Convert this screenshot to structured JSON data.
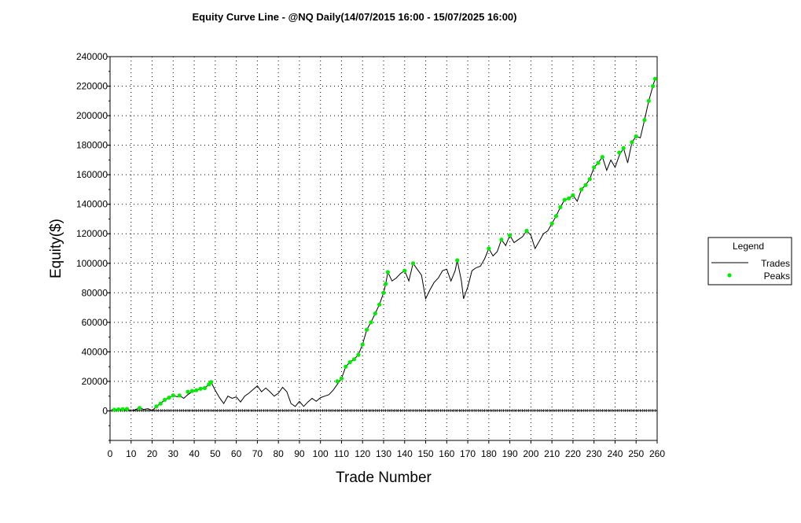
{
  "chart_data": {
    "type": "line",
    "title": "Equity Curve Line - @NQ Daily(14/07/2015 16:00 - 15/07/2025 16:00)",
    "xlabel": "Trade Number",
    "ylabel": "Equity($)",
    "xlim": [
      0,
      260
    ],
    "ylim": [
      -20000,
      240000
    ],
    "x_ticks": [
      "0",
      "10",
      "20",
      "30",
      "40",
      "50",
      "60",
      "70",
      "80",
      "90",
      "100",
      "110",
      "120",
      "130",
      "140",
      "150",
      "160",
      "170",
      "180",
      "190",
      "200",
      "210",
      "220",
      "230",
      "240",
      "250",
      "260"
    ],
    "y_ticks": [
      "0",
      "20000",
      "40000",
      "60000",
      "80000",
      "100000",
      "120000",
      "140000",
      "160000",
      "180000",
      "200000",
      "220000",
      "240000"
    ],
    "grid": true,
    "legend": {
      "title": "Legend",
      "position": "right",
      "entries": [
        "Trades",
        "Peaks"
      ]
    },
    "colors": {
      "trades": "#000000",
      "peaks": "#00ee00"
    },
    "series": [
      {
        "name": "Trades",
        "points": [
          [
            0,
            0
          ],
          [
            2,
            800
          ],
          [
            4,
            1000
          ],
          [
            6,
            1200
          ],
          [
            8,
            600
          ],
          [
            10,
            200
          ],
          [
            12,
            800
          ],
          [
            14,
            2000
          ],
          [
            16,
            1000
          ],
          [
            18,
            1500
          ],
          [
            20,
            300
          ],
          [
            21,
            1500
          ],
          [
            22,
            3000
          ],
          [
            24,
            5000
          ],
          [
            26,
            7500
          ],
          [
            28,
            9000
          ],
          [
            30,
            10500
          ],
          [
            32,
            9500
          ],
          [
            33,
            10500
          ],
          [
            35,
            8500
          ],
          [
            37,
            11000
          ],
          [
            39,
            13000
          ],
          [
            41,
            14000
          ],
          [
            43,
            15000
          ],
          [
            45,
            15500
          ],
          [
            47,
            18000
          ],
          [
            48,
            19500
          ],
          [
            50,
            14000
          ],
          [
            52,
            9000
          ],
          [
            54,
            5000
          ],
          [
            56,
            10000
          ],
          [
            58,
            8500
          ],
          [
            60,
            9500
          ],
          [
            62,
            6000
          ],
          [
            64,
            10000
          ],
          [
            66,
            12000
          ],
          [
            68,
            14500
          ],
          [
            70,
            17000
          ],
          [
            72,
            13000
          ],
          [
            74,
            15500
          ],
          [
            76,
            13000
          ],
          [
            78,
            10000
          ],
          [
            80,
            12000
          ],
          [
            82,
            16000
          ],
          [
            84,
            13000
          ],
          [
            86,
            5000
          ],
          [
            88,
            3000
          ],
          [
            90,
            6500
          ],
          [
            92,
            3000
          ],
          [
            94,
            6000
          ],
          [
            96,
            8500
          ],
          [
            98,
            6500
          ],
          [
            100,
            9000
          ],
          [
            102,
            10000
          ],
          [
            104,
            11000
          ],
          [
            106,
            14000
          ],
          [
            108,
            18000
          ],
          [
            110,
            22000
          ],
          [
            112,
            30000
          ],
          [
            114,
            33000
          ],
          [
            116,
            35000
          ],
          [
            118,
            38000
          ],
          [
            120,
            45000
          ],
          [
            122,
            55000
          ],
          [
            124,
            60000
          ],
          [
            126,
            66000
          ],
          [
            128,
            72000
          ],
          [
            130,
            80000
          ],
          [
            131,
            86000
          ],
          [
            132,
            94000
          ],
          [
            134,
            88000
          ],
          [
            136,
            90000
          ],
          [
            138,
            93000
          ],
          [
            140,
            95000
          ],
          [
            142,
            88000
          ],
          [
            144,
            100000
          ],
          [
            146,
            96000
          ],
          [
            148,
            92000
          ],
          [
            150,
            76000
          ],
          [
            152,
            82000
          ],
          [
            154,
            87000
          ],
          [
            156,
            90000
          ],
          [
            158,
            95000
          ],
          [
            160,
            96000
          ],
          [
            162,
            88000
          ],
          [
            164,
            95000
          ],
          [
            165,
            102000
          ],
          [
            167,
            88000
          ],
          [
            168,
            76000
          ],
          [
            170,
            84000
          ],
          [
            172,
            95000
          ],
          [
            174,
            97000
          ],
          [
            176,
            98000
          ],
          [
            178,
            103000
          ],
          [
            180,
            110000
          ],
          [
            182,
            105000
          ],
          [
            184,
            108000
          ],
          [
            186,
            116000
          ],
          [
            188,
            112000
          ],
          [
            190,
            119000
          ],
          [
            192,
            114000
          ],
          [
            194,
            116000
          ],
          [
            196,
            118000
          ],
          [
            198,
            122000
          ],
          [
            200,
            119000
          ],
          [
            202,
            110000
          ],
          [
            204,
            115000
          ],
          [
            206,
            120000
          ],
          [
            208,
            122000
          ],
          [
            210,
            127000
          ],
          [
            212,
            132000
          ],
          [
            214,
            138000
          ],
          [
            216,
            143000
          ],
          [
            218,
            144000
          ],
          [
            220,
            146000
          ],
          [
            222,
            142000
          ],
          [
            224,
            150000
          ],
          [
            226,
            153000
          ],
          [
            228,
            157000
          ],
          [
            230,
            165000
          ],
          [
            232,
            168000
          ],
          [
            234,
            172000
          ],
          [
            236,
            163000
          ],
          [
            238,
            170000
          ],
          [
            240,
            165000
          ],
          [
            242,
            173000
          ],
          [
            244,
            178000
          ],
          [
            246,
            168000
          ],
          [
            248,
            182000
          ],
          [
            250,
            186000
          ],
          [
            252,
            185000
          ],
          [
            254,
            197000
          ],
          [
            256,
            210000
          ],
          [
            258,
            220000
          ],
          [
            259,
            225000
          ]
        ]
      },
      {
        "name": "Peaks",
        "points": [
          [
            2,
            800
          ],
          [
            4,
            1000
          ],
          [
            6,
            1200
          ],
          [
            8,
            1300
          ],
          [
            14,
            2000
          ],
          [
            22,
            3000
          ],
          [
            24,
            5000
          ],
          [
            26,
            7500
          ],
          [
            28,
            9000
          ],
          [
            30,
            10500
          ],
          [
            33,
            10500
          ],
          [
            37,
            13000
          ],
          [
            39,
            13500
          ],
          [
            41,
            14000
          ],
          [
            43,
            15000
          ],
          [
            45,
            15500
          ],
          [
            47,
            18000
          ],
          [
            48,
            19500
          ],
          [
            108,
            20000
          ],
          [
            110,
            22000
          ],
          [
            112,
            30000
          ],
          [
            114,
            33000
          ],
          [
            116,
            35000
          ],
          [
            118,
            38000
          ],
          [
            120,
            45000
          ],
          [
            122,
            55000
          ],
          [
            124,
            60000
          ],
          [
            126,
            66000
          ],
          [
            128,
            72000
          ],
          [
            130,
            80000
          ],
          [
            131,
            86000
          ],
          [
            132,
            94000
          ],
          [
            140,
            95000
          ],
          [
            144,
            100000
          ],
          [
            165,
            102000
          ],
          [
            180,
            110000
          ],
          [
            186,
            116000
          ],
          [
            190,
            119000
          ],
          [
            198,
            122000
          ],
          [
            210,
            127000
          ],
          [
            212,
            132000
          ],
          [
            214,
            138000
          ],
          [
            216,
            143000
          ],
          [
            218,
            144000
          ],
          [
            220,
            146000
          ],
          [
            224,
            150000
          ],
          [
            226,
            153000
          ],
          [
            228,
            157000
          ],
          [
            230,
            165000
          ],
          [
            232,
            168000
          ],
          [
            234,
            172000
          ],
          [
            242,
            175000
          ],
          [
            244,
            178000
          ],
          [
            248,
            182000
          ],
          [
            250,
            186000
          ],
          [
            254,
            197000
          ],
          [
            256,
            210000
          ],
          [
            258,
            220000
          ],
          [
            259,
            225000
          ]
        ]
      }
    ]
  }
}
